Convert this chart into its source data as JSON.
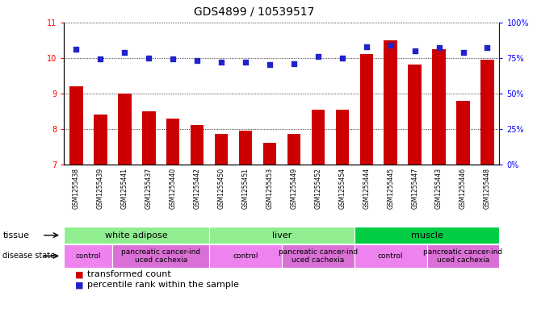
{
  "title": "GDS4899 / 10539517",
  "samples": [
    "GSM1255438",
    "GSM1255439",
    "GSM1255441",
    "GSM1255437",
    "GSM1255440",
    "GSM1255442",
    "GSM1255450",
    "GSM1255451",
    "GSM1255453",
    "GSM1255449",
    "GSM1255452",
    "GSM1255454",
    "GSM1255444",
    "GSM1255445",
    "GSM1255447",
    "GSM1255443",
    "GSM1255446",
    "GSM1255448"
  ],
  "transformed_count": [
    9.2,
    8.4,
    9.0,
    8.5,
    8.3,
    8.1,
    7.85,
    7.95,
    7.6,
    7.85,
    8.55,
    8.55,
    10.1,
    10.5,
    9.8,
    10.25,
    8.8,
    9.95
  ],
  "percentile_rank": [
    81,
    74,
    79,
    75,
    74,
    73,
    72,
    72,
    70,
    71,
    76,
    75,
    83,
    84,
    80,
    82,
    79,
    82
  ],
  "ylim_left": [
    7,
    11
  ],
  "ylim_right": [
    0,
    100
  ],
  "yticks_left": [
    7,
    8,
    9,
    10,
    11
  ],
  "yticks_right": [
    0,
    25,
    50,
    75,
    100
  ],
  "tissue_groups": [
    {
      "label": "white adipose",
      "start": 0,
      "end": 5,
      "color": "#90ee90"
    },
    {
      "label": "liver",
      "start": 6,
      "end": 11,
      "color": "#90ee90"
    },
    {
      "label": "muscle",
      "start": 12,
      "end": 17,
      "color": "#00cc44"
    }
  ],
  "disease_groups": [
    {
      "label": "control",
      "start": 0,
      "end": 1,
      "color": "#ee82ee"
    },
    {
      "label": "pancreatic cancer-ind\nuced cachexia",
      "start": 2,
      "end": 5,
      "color": "#da70d6"
    },
    {
      "label": "control",
      "start": 6,
      "end": 8,
      "color": "#ee82ee"
    },
    {
      "label": "pancreatic cancer-ind\nuced cachexia",
      "start": 9,
      "end": 11,
      "color": "#da70d6"
    },
    {
      "label": "control",
      "start": 12,
      "end": 14,
      "color": "#ee82ee"
    },
    {
      "label": "pancreatic cancer-ind\nuced cachexia",
      "start": 15,
      "end": 17,
      "color": "#da70d6"
    }
  ],
  "bar_color": "#cc0000",
  "dot_color": "#2222cc",
  "bar_width": 0.55,
  "background_color": "#ffffff",
  "title_fontsize": 10,
  "tick_fontsize": 7,
  "label_fontsize": 8,
  "legend_fontsize": 8,
  "disease_label_fontsize": 6.5,
  "sample_fontsize": 5.5
}
